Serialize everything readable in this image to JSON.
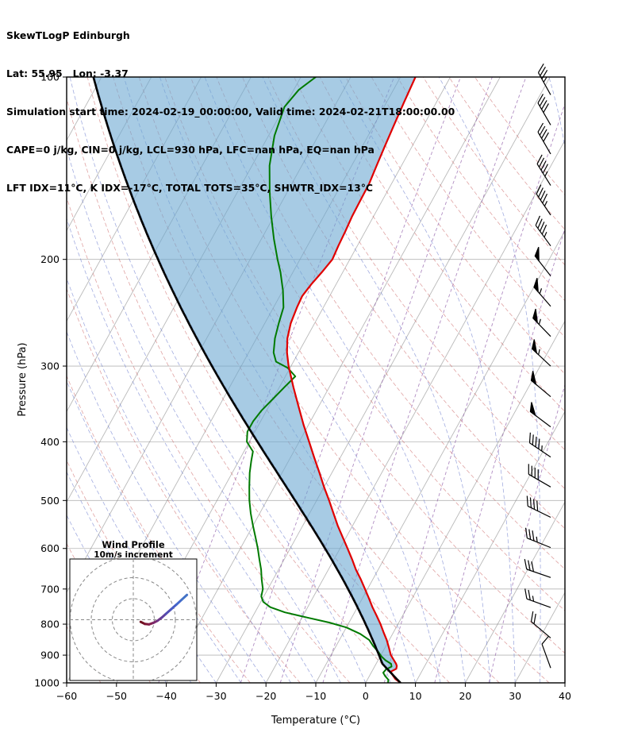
{
  "header": {
    "title": "SkewTLogP Edinburgh",
    "location": "Lat: 55.95   Lon: -3.37",
    "times": "Simulation start time: 2024-02-19_00:00:00, Valid time: 2024-02-21T18:00:00.00",
    "indices_line1": "CAPE=0 j/kg, CIN=0 j/kg, LCL=930 hPa, LFC=nan hPa, EQ=nan hPa",
    "indices_line2": "LFT IDX=11°C, K IDX=-17°C, TOTAL TOTS=35°C, SHWTR_IDX=13°C"
  },
  "chart_data": {
    "type": "line",
    "chart_kind": "skewT-logP-sounding",
    "xlabel": "Temperature (°C)",
    "ylabel": "Pressure (hPa)",
    "xlim": [
      -60,
      40
    ],
    "ylim": [
      1000,
      100
    ],
    "x_ticks": [
      -60,
      -50,
      -40,
      -30,
      -20,
      -10,
      0,
      10,
      20,
      30,
      40
    ],
    "y_ticks": [
      100,
      200,
      300,
      400,
      500,
      600,
      700,
      800,
      900,
      1000
    ],
    "skew_c_per_decade": 67,
    "colors": {
      "temperature": "#e00000",
      "dewpoint": "#007a00",
      "parcel": "#000000",
      "shading": "#6da8d2",
      "isotherm": "#808080",
      "grid": "#b5b5b5",
      "dry_adiabat": "#cc6666",
      "moist_adiabat": "#6677cc",
      "mixing_ratio": "#8e5ba8",
      "barb": "#000000"
    },
    "temperature_c": {
      "pressure": [
        1000,
        985,
        970,
        958,
        948,
        938,
        930,
        915,
        900,
        875,
        850,
        825,
        800,
        775,
        750,
        725,
        700,
        675,
        650,
        625,
        600,
        575,
        550,
        525,
        500,
        475,
        450,
        425,
        400,
        375,
        350,
        325,
        300,
        285,
        270,
        255,
        240,
        230,
        220,
        210,
        200,
        190,
        180,
        170,
        160,
        150,
        140,
        130,
        120,
        110,
        100
      ],
      "values": [
        7,
        5.5,
        4.5,
        3.8,
        4.6,
        4.4,
        4.0,
        3.0,
        2.0,
        0.8,
        -0.5,
        -2.0,
        -3.5,
        -5.2,
        -7.0,
        -8.7,
        -10.5,
        -12.4,
        -14.5,
        -16.4,
        -18.5,
        -20.7,
        -23.0,
        -25.2,
        -27.5,
        -30.0,
        -32.5,
        -35.2,
        -38.0,
        -41.0,
        -44.0,
        -47.2,
        -50.5,
        -52.3,
        -53.8,
        -54.8,
        -55.3,
        -55.5,
        -55.0,
        -54.2,
        -53.5,
        -53.8,
        -54.0,
        -54.3,
        -54.4,
        -54.5,
        -55.0,
        -55.5,
        -56.0,
        -56.5,
        -57.0
      ]
    },
    "dewpoint_c": {
      "pressure": [
        1000,
        988,
        975,
        962,
        950,
        940,
        930,
        918,
        905,
        890,
        870,
        850,
        830,
        810,
        795,
        780,
        765,
        750,
        735,
        720,
        700,
        675,
        650,
        625,
        600,
        575,
        550,
        525,
        500,
        475,
        450,
        430,
        415,
        400,
        385,
        370,
        355,
        340,
        325,
        312,
        302,
        295,
        285,
        270,
        255,
        240,
        225,
        210,
        200,
        185,
        170,
        155,
        140,
        125,
        112,
        105,
        100
      ],
      "values": [
        4.5,
        4.2,
        3.2,
        2.4,
        2.6,
        3.4,
        3.0,
        1.5,
        0.3,
        -0.8,
        -2.5,
        -4.0,
        -6.5,
        -10.0,
        -14.0,
        -19.0,
        -24.0,
        -27.5,
        -29.5,
        -30.5,
        -31.0,
        -32.3,
        -33.5,
        -35.0,
        -36.5,
        -38.2,
        -40.0,
        -41.8,
        -43.5,
        -45.0,
        -46.5,
        -47.5,
        -48.2,
        -50.5,
        -51.5,
        -51.5,
        -51.0,
        -50.0,
        -49.0,
        -48.0,
        -50.5,
        -53.5,
        -55.0,
        -56.3,
        -57.2,
        -58.0,
        -60.0,
        -62.5,
        -64.5,
        -67.5,
        -70.5,
        -73.5,
        -76.5,
        -78.8,
        -80.0,
        -79.0,
        -77.0
      ]
    },
    "parcel": {
      "surface_p": 1000,
      "surface_t": 7,
      "lcl_p": 930
    },
    "background": {
      "isotherm_min": -130,
      "isotherm_max": 40,
      "isotherm_step": 10,
      "dry_adiabats_K": [
        210,
        220,
        230,
        240,
        250,
        260,
        270,
        280,
        290,
        300,
        310,
        320,
        330,
        340,
        350,
        360,
        370,
        380,
        390,
        400,
        410,
        420,
        430,
        440
      ],
      "moist_adiabats_C": [
        -40,
        -35,
        -30,
        -25,
        -20,
        -15,
        -10,
        -5,
        0,
        5,
        10,
        15,
        20,
        25,
        30,
        35,
        40
      ],
      "mixing_ratio_g_kg": [
        0.1,
        0.5,
        1,
        2,
        5,
        10,
        20
      ]
    },
    "wind_barbs": [
      {
        "p": 107,
        "speed_kt": 35,
        "dir_deg": 331
      },
      {
        "p": 120,
        "speed_kt": 38,
        "dir_deg": 330
      },
      {
        "p": 134,
        "speed_kt": 40,
        "dir_deg": 330
      },
      {
        "p": 151,
        "speed_kt": 43,
        "dir_deg": 328
      },
      {
        "p": 169,
        "speed_kt": 45,
        "dir_deg": 326
      },
      {
        "p": 190,
        "speed_kt": 45,
        "dir_deg": 324
      },
      {
        "p": 213,
        "speed_kt": 48,
        "dir_deg": 322
      },
      {
        "p": 239,
        "speed_kt": 55,
        "dir_deg": 319
      },
      {
        "p": 268,
        "speed_kt": 55,
        "dir_deg": 316
      },
      {
        "p": 300,
        "speed_kt": 55,
        "dir_deg": 313
      },
      {
        "p": 337,
        "speed_kt": 48,
        "dir_deg": 310
      },
      {
        "p": 378,
        "speed_kt": 48,
        "dir_deg": 307
      },
      {
        "p": 424,
        "speed_kt": 45,
        "dir_deg": 304
      },
      {
        "p": 475,
        "speed_kt": 42,
        "dir_deg": 300
      },
      {
        "p": 533,
        "speed_kt": 38,
        "dir_deg": 296
      },
      {
        "p": 598,
        "speed_kt": 35,
        "dir_deg": 292
      },
      {
        "p": 670,
        "speed_kt": 30,
        "dir_deg": 289
      },
      {
        "p": 751,
        "speed_kt": 25,
        "dir_deg": 290
      },
      {
        "p": 843,
        "speed_kt": 18,
        "dir_deg": 310
      },
      {
        "p": 945,
        "speed_kt": 12,
        "dir_deg": 340
      }
    ]
  },
  "hodograph": {
    "title": "Wind Profile",
    "subtitle": "10m/s increment",
    "ring_interval_ms": 10,
    "trace_uv_ms": [
      {
        "u": 3.5,
        "v": -1.0,
        "color": "#701020"
      },
      {
        "u": 5.5,
        "v": -2.0,
        "color": "#7d1535"
      },
      {
        "u": 7.5,
        "v": -2.2,
        "color": "#83204f"
      },
      {
        "u": 9.5,
        "v": -1.5,
        "color": "#7c2a6e"
      },
      {
        "u": 11.5,
        "v": -0.5,
        "color": "#6f3588"
      },
      {
        "u": 13.5,
        "v": 1.0,
        "color": "#60419e"
      },
      {
        "u": 15.5,
        "v": 2.8,
        "color": "#524eb4"
      },
      {
        "u": 18.0,
        "v": 5.0,
        "color": "#485cc4"
      },
      {
        "u": 20.5,
        "v": 7.2,
        "color": "#4468cc"
      },
      {
        "u": 23.0,
        "v": 9.5,
        "color": "#4473c6"
      },
      {
        "u": 25.5,
        "v": 11.8,
        "color": "#4a7bba"
      }
    ]
  }
}
